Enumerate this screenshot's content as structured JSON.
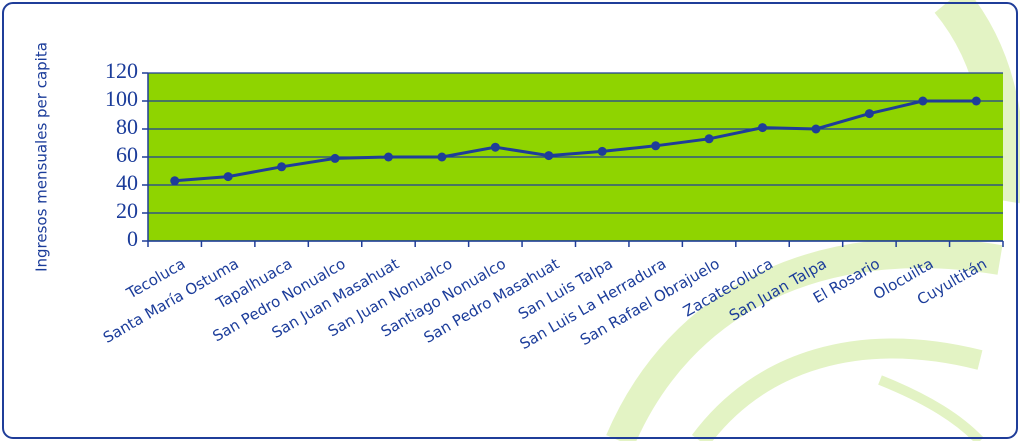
{
  "chart_data": {
    "type": "line",
    "y_label": "Ingresos mensuales per capita",
    "categories": [
      "Tecoluca",
      "Santa María Ostuma",
      "Tapalhuaca",
      "San Pedro Nonualco",
      "San Juan Masahuat",
      "San Juan Nonualco",
      "Santiago Nonualco",
      "San Pedro Masahuat",
      "San Luis Talpa",
      "San Luis La Herradura",
      "San Rafael Obrajuelo",
      "Zacatecoluca",
      "San Juan Talpa",
      "El Rosario",
      "Olocuilta",
      "Cuyultitán"
    ],
    "values": [
      43,
      46,
      53,
      59,
      60,
      60,
      67,
      61,
      64,
      68,
      73,
      81,
      80,
      91,
      100,
      100
    ],
    "color": "#1f3d99",
    "plot_background": "#8fd400",
    "ylim": [
      0,
      120
    ],
    "yticks": [
      0,
      20,
      40,
      60,
      80,
      100,
      120
    ],
    "grid": true
  }
}
